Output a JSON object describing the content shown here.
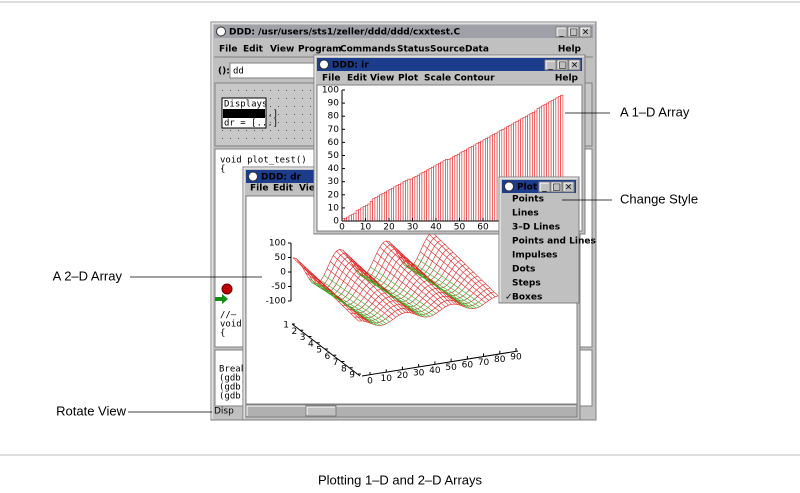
{
  "figure": {
    "caption": "Plotting 1–D and 2–D Arrays",
    "annotations": [
      "A 1–D Array",
      "Change Style",
      "A 2–D Array",
      "Rotate View"
    ]
  },
  "main_window": {
    "title": "DDD: /usr/users/sts1/zeller/ddd/ddd/cxxtest.C",
    "menu": [
      "File",
      "Edit",
      "View",
      "Program",
      "Commands",
      "Status",
      "Source",
      "Data"
    ],
    "help": "Help",
    "arg_label": "():",
    "arg_value": "dd",
    "displays_title": "Displays",
    "displays": [
      "ir = [...]",
      "dr = [...]"
    ],
    "source": [
      "void plot_test()",
      "{"
    ],
    "source_tail": [
      "//—",
      "void",
      "{"
    ],
    "console": [
      "Break",
      "(gdb)",
      "(gdb)",
      "(gdb)"
    ],
    "status": "Disp"
  },
  "ir_window": {
    "title": "DDD: ir",
    "menu": [
      "File",
      "Edit",
      "View",
      "Plot",
      "Scale",
      "Contour"
    ],
    "help": "Help",
    "chart_data": {
      "type": "bar",
      "color": "#e02020",
      "x": [
        0,
        1,
        2,
        3,
        4,
        5,
        6,
        7,
        8,
        9,
        10,
        11,
        12,
        13,
        14,
        15,
        16,
        17,
        18,
        19,
        20,
        21,
        22,
        23,
        24,
        25,
        26,
        27,
        28,
        29,
        30,
        31,
        32,
        33,
        34,
        35,
        36,
        37,
        38,
        39,
        40,
        41,
        42,
        43,
        44,
        45,
        46,
        47,
        48,
        49,
        50,
        51,
        52,
        53,
        54,
        55,
        56,
        57,
        58,
        59,
        60,
        61,
        62,
        63,
        64,
        65,
        66,
        67,
        68,
        69,
        70,
        71,
        72,
        73,
        74,
        75,
        76,
        77,
        78,
        79,
        80,
        81,
        82,
        83,
        84,
        85,
        86,
        87,
        88,
        89,
        90,
        91,
        92,
        93
      ],
      "values": [
        2,
        2,
        3,
        4,
        5,
        6,
        8,
        9,
        10,
        11,
        12,
        13,
        15,
        17,
        18,
        19,
        20,
        21,
        22,
        23,
        24,
        25,
        26,
        27,
        28,
        29,
        30,
        31,
        32,
        32,
        33,
        34,
        35,
        36,
        37,
        38,
        39,
        40,
        41,
        42,
        43,
        44,
        45,
        46,
        47,
        47,
        48,
        49,
        50,
        51,
        52,
        53,
        54,
        55,
        56,
        57,
        58,
        59,
        60,
        61,
        62,
        63,
        64,
        65,
        66,
        67,
        68,
        69,
        70,
        71,
        72,
        73,
        74,
        75,
        76,
        77,
        78,
        79,
        80,
        81,
        82,
        83,
        84,
        86,
        87,
        88,
        89,
        90,
        91,
        92,
        93,
        94,
        95,
        96
      ],
      "xlim": [
        0,
        100
      ],
      "ylim": [
        0,
        100
      ],
      "xticks": [
        0,
        10,
        20,
        30,
        40,
        50,
        60,
        70,
        80,
        90
      ],
      "yticks": [
        0,
        10,
        20,
        30,
        40,
        50,
        60,
        70,
        80,
        90,
        100
      ]
    }
  },
  "dr_window": {
    "title": "DDD: dr",
    "menu": [
      "File",
      "Edit",
      "View"
    ],
    "chart_data": {
      "type": "surface",
      "color": "#e02020",
      "zlim": [
        -100,
        100
      ],
      "zticks": [
        100,
        50,
        0,
        -50,
        -100
      ],
      "yticks": [
        1,
        2,
        3,
        4,
        5,
        6,
        7,
        8,
        9
      ],
      "xticks": [
        0,
        10,
        20,
        30,
        40,
        50,
        60,
        70,
        80,
        90
      ]
    }
  },
  "plot_menu": {
    "title": "Plot",
    "items": [
      "Points",
      "Lines",
      "3–D Lines",
      "Points and Lines",
      "Impulses",
      "Dots",
      "Steps",
      "Boxes"
    ]
  }
}
